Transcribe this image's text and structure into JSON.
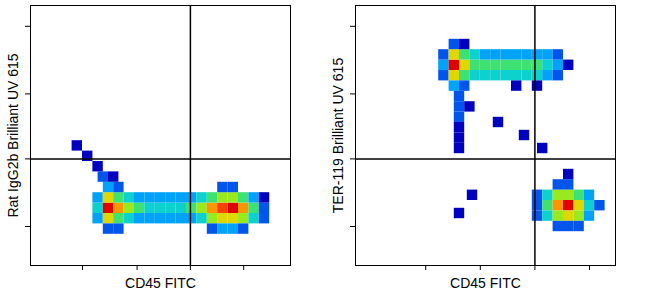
{
  "chart_data": [
    {
      "type": "heatmap",
      "x_label": "CD45 FITC",
      "y_label": "Rat IgG2b Brilliant UV 615",
      "xlim": [
        0,
        100
      ],
      "ylim": [
        0,
        100
      ],
      "xticks": [
        20,
        41,
        61.5,
        82
      ],
      "yticks": [
        15,
        41,
        66,
        92
      ],
      "tick_labels": false,
      "gates": {
        "x": 61.5,
        "y": 41
      },
      "cell_size": 4,
      "cells": [
        [
          26,
          22,
          4
        ],
        [
          30,
          22,
          10
        ],
        [
          34,
          22,
          8
        ],
        [
          38,
          22,
          6
        ],
        [
          42,
          22,
          5
        ],
        [
          46,
          22,
          4
        ],
        [
          50,
          22,
          4
        ],
        [
          54,
          22,
          4
        ],
        [
          58,
          22,
          4
        ],
        [
          62,
          22,
          5
        ],
        [
          66,
          22,
          6
        ],
        [
          70,
          22,
          8
        ],
        [
          74,
          22,
          9
        ],
        [
          78,
          22,
          10
        ],
        [
          82,
          22,
          8
        ],
        [
          86,
          22,
          5
        ],
        [
          90,
          22,
          2
        ],
        [
          26,
          18,
          3
        ],
        [
          30,
          18,
          7
        ],
        [
          34,
          18,
          5
        ],
        [
          38,
          18,
          4
        ],
        [
          42,
          18,
          3
        ],
        [
          46,
          18,
          3
        ],
        [
          50,
          18,
          3
        ],
        [
          54,
          18,
          3
        ],
        [
          58,
          18,
          3
        ],
        [
          62,
          18,
          3
        ],
        [
          66,
          18,
          4
        ],
        [
          70,
          18,
          6
        ],
        [
          74,
          18,
          7
        ],
        [
          78,
          18,
          7
        ],
        [
          82,
          18,
          6
        ],
        [
          86,
          18,
          4
        ],
        [
          90,
          18,
          2
        ],
        [
          26,
          26,
          3
        ],
        [
          30,
          26,
          7
        ],
        [
          34,
          26,
          5
        ],
        [
          38,
          26,
          4
        ],
        [
          42,
          26,
          3
        ],
        [
          46,
          26,
          3
        ],
        [
          50,
          26,
          3
        ],
        [
          54,
          26,
          3
        ],
        [
          58,
          26,
          3
        ],
        [
          62,
          26,
          3
        ],
        [
          66,
          26,
          4
        ],
        [
          70,
          26,
          5
        ],
        [
          74,
          26,
          6
        ],
        [
          78,
          26,
          6
        ],
        [
          82,
          26,
          5
        ],
        [
          86,
          26,
          3
        ],
        [
          90,
          26,
          1
        ],
        [
          30,
          14,
          2
        ],
        [
          34,
          14,
          2
        ],
        [
          70,
          14,
          2
        ],
        [
          74,
          14,
          3
        ],
        [
          78,
          14,
          3
        ],
        [
          82,
          14,
          2
        ],
        [
          30,
          30,
          3
        ],
        [
          34,
          30,
          2
        ],
        [
          74,
          30,
          2
        ],
        [
          78,
          30,
          2
        ],
        [
          28,
          34,
          2
        ],
        [
          32,
          34,
          1
        ],
        [
          26,
          38,
          1
        ],
        [
          22,
          42,
          1
        ],
        [
          18,
          46,
          1
        ]
      ]
    },
    {
      "type": "heatmap",
      "x_label": "CD45 FITC",
      "y_label": "TER-119 Brilliant UV 615",
      "xlim": [
        0,
        100
      ],
      "ylim": [
        0,
        100
      ],
      "xticks": [
        27,
        48,
        69,
        90
      ],
      "yticks": [
        15,
        41,
        66,
        92
      ],
      "tick_labels": false,
      "gates": {
        "x": 69,
        "y": 41
      },
      "cell_size": 4,
      "cells": [
        [
          34,
          77,
          3
        ],
        [
          38,
          77,
          10
        ],
        [
          42,
          77,
          7
        ],
        [
          46,
          77,
          5
        ],
        [
          50,
          77,
          5
        ],
        [
          54,
          77,
          5
        ],
        [
          58,
          77,
          5
        ],
        [
          62,
          77,
          5
        ],
        [
          66,
          77,
          5
        ],
        [
          70,
          77,
          5
        ],
        [
          74,
          77,
          4
        ],
        [
          78,
          77,
          3
        ],
        [
          82,
          77,
          1
        ],
        [
          34,
          81,
          2
        ],
        [
          38,
          81,
          7
        ],
        [
          42,
          81,
          5
        ],
        [
          46,
          81,
          4
        ],
        [
          50,
          81,
          3
        ],
        [
          54,
          81,
          3
        ],
        [
          58,
          81,
          3
        ],
        [
          62,
          81,
          3
        ],
        [
          66,
          81,
          3
        ],
        [
          70,
          81,
          3
        ],
        [
          74,
          81,
          3
        ],
        [
          78,
          81,
          2
        ],
        [
          34,
          73,
          2
        ],
        [
          38,
          73,
          7
        ],
        [
          42,
          73,
          5
        ],
        [
          46,
          73,
          4
        ],
        [
          50,
          73,
          4
        ],
        [
          54,
          73,
          4
        ],
        [
          58,
          73,
          4
        ],
        [
          62,
          73,
          4
        ],
        [
          66,
          73,
          4
        ],
        [
          70,
          73,
          4
        ],
        [
          74,
          73,
          3
        ],
        [
          78,
          73,
          2
        ],
        [
          38,
          85,
          2
        ],
        [
          42,
          85,
          1
        ],
        [
          38,
          69,
          3
        ],
        [
          42,
          69,
          2
        ],
        [
          62,
          69,
          1
        ],
        [
          70,
          69,
          1
        ],
        [
          40,
          65,
          2
        ],
        [
          40,
          61,
          2
        ],
        [
          40,
          57,
          2
        ],
        [
          40,
          53,
          1
        ],
        [
          40,
          49,
          1
        ],
        [
          40,
          45,
          1
        ],
        [
          44,
          61,
          1
        ],
        [
          55,
          55,
          1
        ],
        [
          65,
          50,
          1
        ],
        [
          72,
          45,
          1
        ],
        [
          70,
          23,
          2
        ],
        [
          74,
          23,
          5
        ],
        [
          78,
          23,
          8
        ],
        [
          82,
          23,
          10
        ],
        [
          86,
          23,
          7
        ],
        [
          90,
          23,
          4
        ],
        [
          94,
          23,
          2
        ],
        [
          70,
          19,
          2
        ],
        [
          74,
          19,
          4
        ],
        [
          78,
          19,
          6
        ],
        [
          82,
          19,
          7
        ],
        [
          86,
          19,
          6
        ],
        [
          90,
          19,
          3
        ],
        [
          70,
          27,
          2
        ],
        [
          74,
          27,
          4
        ],
        [
          78,
          27,
          6
        ],
        [
          82,
          27,
          6
        ],
        [
          86,
          27,
          5
        ],
        [
          90,
          27,
          3
        ],
        [
          78,
          15,
          2
        ],
        [
          82,
          15,
          2
        ],
        [
          86,
          15,
          2
        ],
        [
          78,
          31,
          2
        ],
        [
          82,
          31,
          2
        ],
        [
          82,
          35,
          1
        ],
        [
          40,
          20,
          1
        ],
        [
          45,
          27,
          1
        ]
      ]
    }
  ]
}
